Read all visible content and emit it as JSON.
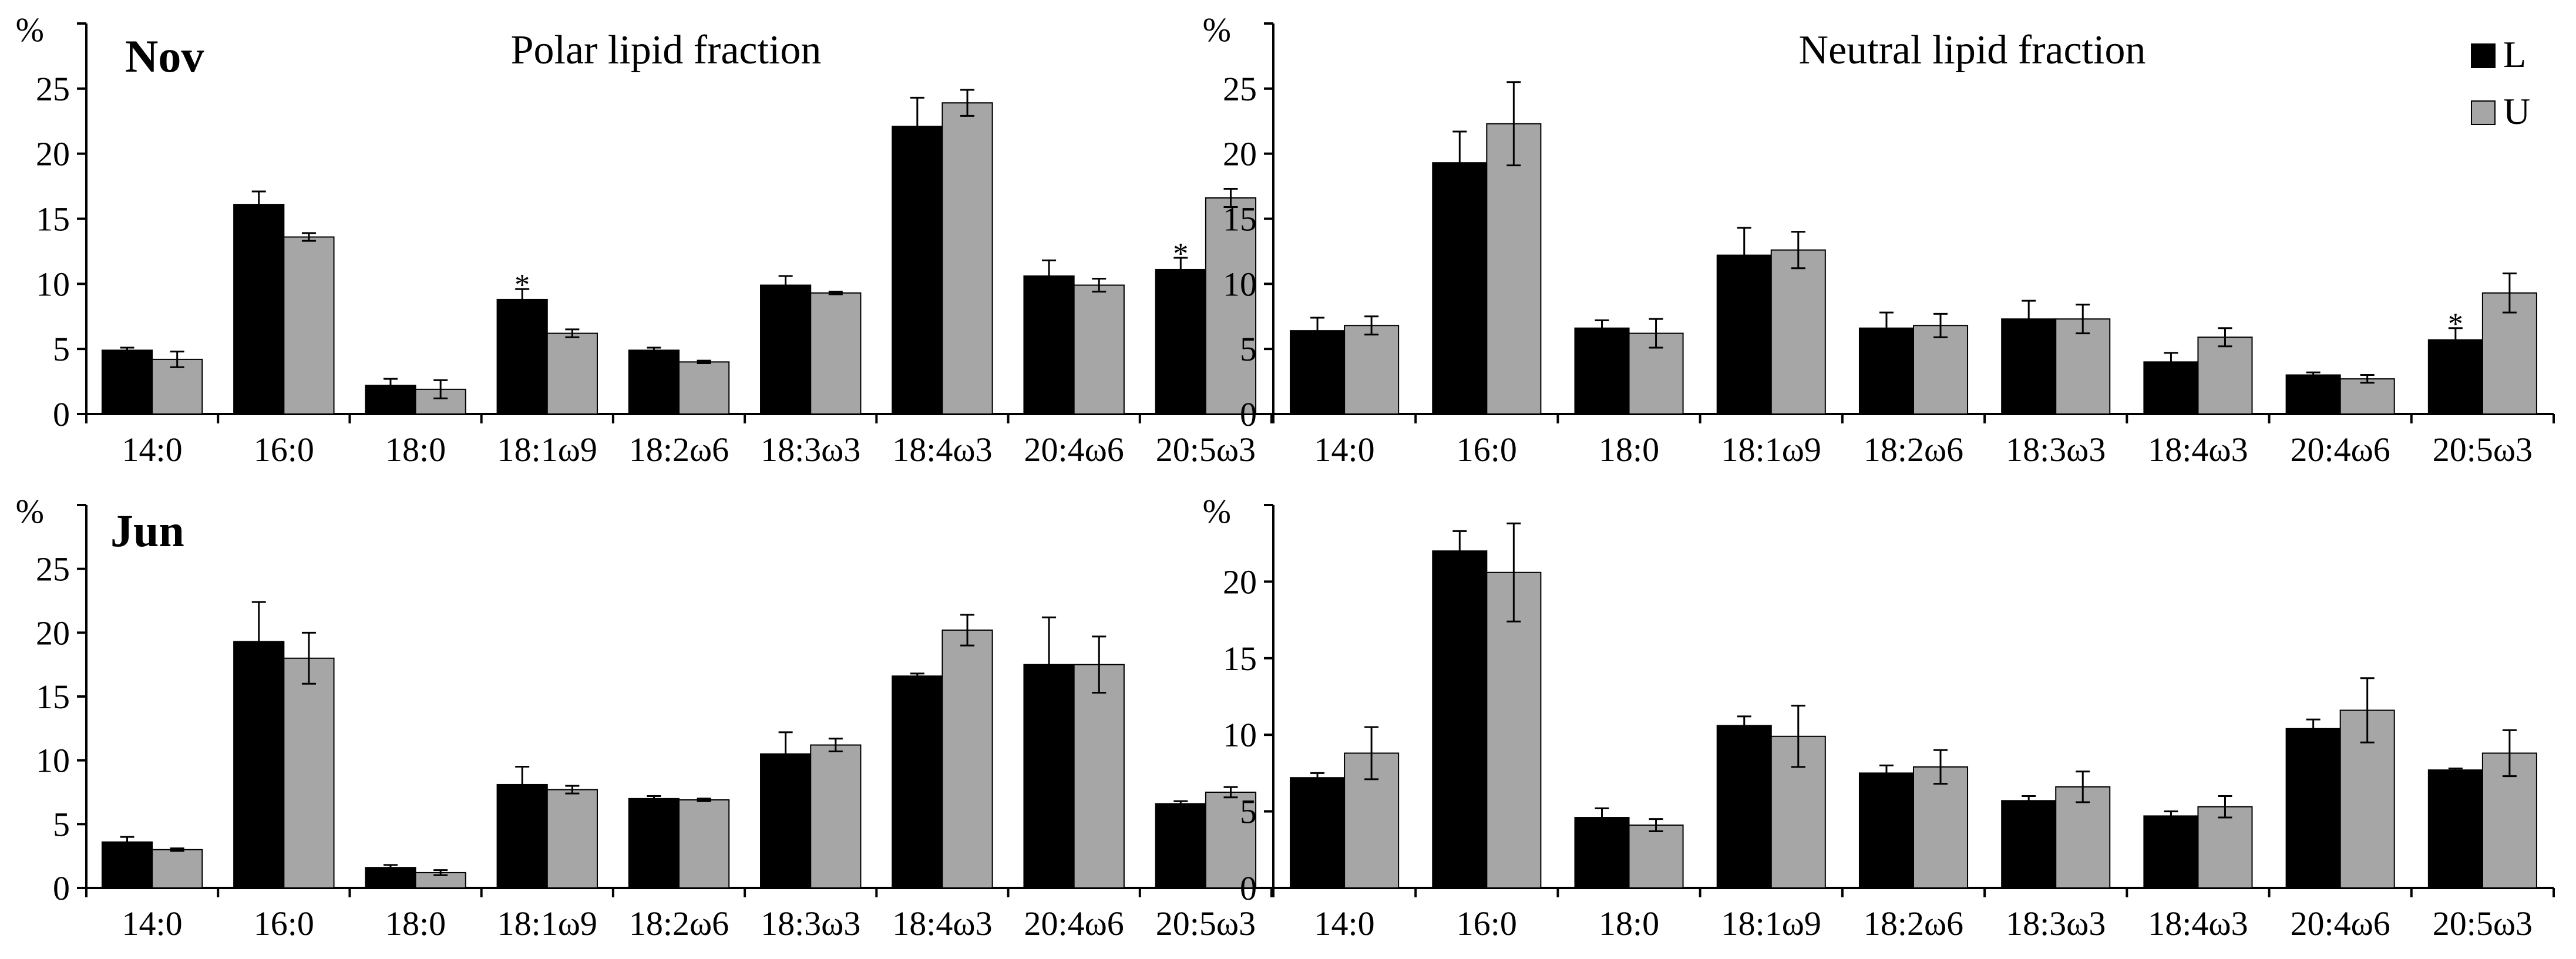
{
  "colors": {
    "L": "#000000",
    "U": "#a6a6a6"
  },
  "legend": [
    {
      "label": "L",
      "color": "#000000"
    },
    {
      "label": "U",
      "color": "#a6a6a6"
    }
  ],
  "chart_data": [
    {
      "type": "bar",
      "month": "Nov",
      "title": "Polar lipid fraction",
      "ylabel": "%",
      "ylim": [
        0,
        30
      ],
      "yticks": [
        0,
        5,
        10,
        15,
        20,
        25
      ],
      "categories": [
        "14:0",
        "16:0",
        "18:0",
        "18:1ω9",
        "18:2ω6",
        "18:3ω3",
        "18:4ω3",
        "20:4ω6",
        "20:5ω3"
      ],
      "series": [
        {
          "name": "L",
          "values": [
            4.9,
            16.1,
            2.2,
            8.8,
            4.9,
            9.9,
            22.1,
            10.6,
            11.1
          ],
          "errors": [
            0.2,
            1.0,
            0.5,
            0.8,
            0.2,
            0.7,
            2.2,
            1.2,
            0.9
          ]
        },
        {
          "name": "U",
          "values": [
            4.2,
            13.6,
            1.9,
            6.2,
            4.0,
            9.3,
            23.9,
            9.9,
            16.6
          ],
          "errors": [
            0.6,
            0.3,
            0.7,
            0.3,
            0.1,
            0.1,
            1.0,
            0.5,
            0.7
          ]
        }
      ],
      "annotations": [
        {
          "category": "18:1ω9",
          "series": "L",
          "text": "*"
        },
        {
          "category": "20:5ω3",
          "series": "L",
          "text": "*"
        }
      ]
    },
    {
      "type": "bar",
      "title": "Neutral lipid fraction",
      "ylabel": "%",
      "ylim": [
        0,
        30
      ],
      "yticks": [
        0,
        5,
        10,
        15,
        20,
        25
      ],
      "categories": [
        "14:0",
        "16:0",
        "18:0",
        "18:1ω9",
        "18:2ω6",
        "18:3ω3",
        "18:4ω3",
        "20:4ω6",
        "20:5ω3"
      ],
      "series": [
        {
          "name": "L",
          "values": [
            6.4,
            19.3,
            6.6,
            12.2,
            6.6,
            7.3,
            4.0,
            3.0,
            5.7
          ],
          "errors": [
            1.0,
            2.4,
            0.6,
            2.1,
            1.2,
            1.4,
            0.7,
            0.2,
            0.9
          ]
        },
        {
          "name": "U",
          "values": [
            6.8,
            22.3,
            6.2,
            12.6,
            6.8,
            7.3,
            5.9,
            2.7,
            9.3
          ],
          "errors": [
            0.7,
            3.2,
            1.1,
            1.4,
            0.9,
            1.1,
            0.7,
            0.3,
            1.5
          ]
        }
      ],
      "annotations": [
        {
          "category": "20:5ω3",
          "series": "L",
          "text": "*"
        }
      ],
      "show_legend": true,
      "legend_position": "top-right"
    },
    {
      "type": "bar",
      "month": "Jun",
      "ylabel": "%",
      "ylim": [
        0,
        30
      ],
      "yticks": [
        0,
        5,
        10,
        15,
        20,
        25
      ],
      "categories": [
        "14:0",
        "16:0",
        "18:0",
        "18:1ω9",
        "18:2ω6",
        "18:3ω3",
        "18:4ω3",
        "20:4ω6",
        "20:5ω3"
      ],
      "series": [
        {
          "name": "L",
          "values": [
            3.6,
            19.3,
            1.6,
            8.1,
            7.0,
            10.5,
            16.6,
            17.5,
            6.6
          ],
          "errors": [
            0.4,
            3.1,
            0.2,
            1.4,
            0.2,
            1.7,
            0.2,
            3.7,
            0.2
          ]
        },
        {
          "name": "U",
          "values": [
            3.0,
            18.0,
            1.2,
            7.7,
            6.9,
            11.2,
            20.2,
            17.5,
            7.5
          ],
          "errors": [
            0.1,
            2.0,
            0.2,
            0.3,
            0.1,
            0.5,
            1.2,
            2.2,
            0.4
          ]
        }
      ],
      "annotations": []
    },
    {
      "type": "bar",
      "ylabel": "%",
      "ylim": [
        0,
        25
      ],
      "yticks": [
        0,
        5,
        10,
        15,
        20
      ],
      "categories": [
        "14:0",
        "16:0",
        "18:0",
        "18:1ω9",
        "18:2ω6",
        "18:3ω3",
        "18:4ω3",
        "20:4ω6",
        "20:5ω3"
      ],
      "series": [
        {
          "name": "L",
          "values": [
            7.2,
            22.0,
            4.6,
            10.6,
            7.5,
            5.7,
            4.7,
            10.4,
            7.7
          ],
          "errors": [
            0.3,
            1.3,
            0.6,
            0.6,
            0.5,
            0.3,
            0.3,
            0.6,
            0.1
          ]
        },
        {
          "name": "U",
          "values": [
            8.8,
            20.6,
            4.1,
            9.9,
            7.9,
            6.6,
            5.3,
            11.6,
            8.8
          ],
          "errors": [
            1.7,
            3.2,
            0.4,
            2.0,
            1.1,
            1.0,
            0.7,
            2.1,
            1.5
          ]
        }
      ],
      "annotations": []
    }
  ]
}
